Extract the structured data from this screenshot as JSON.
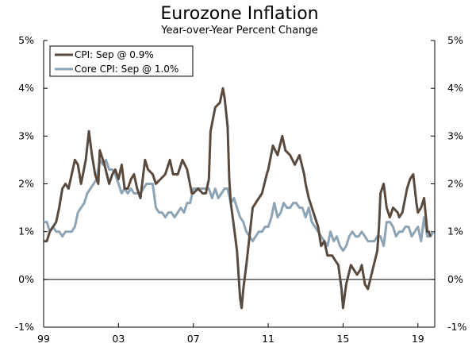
{
  "chart_data": {
    "type": "line",
    "title": "Eurozone Inflation",
    "subtitle": "Year-over-Year Percent Change",
    "xlabel": "",
    "ylabel": "",
    "ylim": [
      -1,
      5
    ],
    "xlim": [
      1999.0,
      2019.9
    ],
    "y_ticks": [
      {
        "value": 5,
        "label": "5%"
      },
      {
        "value": 4,
        "label": "4%"
      },
      {
        "value": 3,
        "label": "3%"
      },
      {
        "value": 2,
        "label": "2%"
      },
      {
        "value": 1,
        "label": "1%"
      },
      {
        "value": 0,
        "label": "0%"
      },
      {
        "value": -1,
        "label": "-1%"
      }
    ],
    "x_ticks": [
      {
        "value": 1999,
        "label": "99"
      },
      {
        "value": 2003,
        "label": "03"
      },
      {
        "value": 2007,
        "label": "07"
      },
      {
        "value": 2011,
        "label": "11"
      },
      {
        "value": 2015,
        "label": "15"
      },
      {
        "value": 2019,
        "label": "19"
      }
    ],
    "legend_position": "top-left",
    "series": [
      {
        "name": "CPI: Sep @ 0.9%",
        "color": "#5a4a3e",
        "points": [
          [
            1999.0,
            0.8
          ],
          [
            1999.17,
            0.8
          ],
          [
            1999.33,
            1.0
          ],
          [
            1999.5,
            1.1
          ],
          [
            1999.67,
            1.2
          ],
          [
            1999.83,
            1.5
          ],
          [
            2000.0,
            1.9
          ],
          [
            2000.17,
            2.0
          ],
          [
            2000.33,
            1.9
          ],
          [
            2000.5,
            2.2
          ],
          [
            2000.67,
            2.5
          ],
          [
            2000.83,
            2.4
          ],
          [
            2001.0,
            2.0
          ],
          [
            2001.25,
            2.5
          ],
          [
            2001.42,
            3.1
          ],
          [
            2001.58,
            2.6
          ],
          [
            2001.75,
            2.2
          ],
          [
            2001.92,
            2.0
          ],
          [
            2002.0,
            2.7
          ],
          [
            2002.25,
            2.4
          ],
          [
            2002.5,
            2.0
          ],
          [
            2002.67,
            2.2
          ],
          [
            2002.83,
            2.3
          ],
          [
            2003.0,
            2.1
          ],
          [
            2003.17,
            2.4
          ],
          [
            2003.33,
            1.9
          ],
          [
            2003.5,
            1.9
          ],
          [
            2003.67,
            2.1
          ],
          [
            2003.83,
            2.2
          ],
          [
            2004.0,
            1.9
          ],
          [
            2004.17,
            1.7
          ],
          [
            2004.42,
            2.5
          ],
          [
            2004.58,
            2.3
          ],
          [
            2004.83,
            2.2
          ],
          [
            2005.0,
            2.0
          ],
          [
            2005.25,
            2.1
          ],
          [
            2005.5,
            2.2
          ],
          [
            2005.75,
            2.5
          ],
          [
            2005.92,
            2.2
          ],
          [
            2006.17,
            2.2
          ],
          [
            2006.42,
            2.5
          ],
          [
            2006.67,
            2.3
          ],
          [
            2006.92,
            1.8
          ],
          [
            2007.0,
            1.8
          ],
          [
            2007.25,
            1.9
          ],
          [
            2007.5,
            1.8
          ],
          [
            2007.67,
            1.8
          ],
          [
            2007.83,
            2.1
          ],
          [
            2007.92,
            3.1
          ],
          [
            2008.17,
            3.6
          ],
          [
            2008.42,
            3.7
          ],
          [
            2008.58,
            4.0
          ],
          [
            2008.67,
            3.8
          ],
          [
            2008.83,
            3.2
          ],
          [
            2008.92,
            2.1
          ],
          [
            2009.0,
            1.6
          ],
          [
            2009.17,
            1.1
          ],
          [
            2009.33,
            0.6
          ],
          [
            2009.5,
            -0.4
          ],
          [
            2009.58,
            -0.6
          ],
          [
            2009.67,
            -0.2
          ],
          [
            2009.83,
            0.3
          ],
          [
            2010.0,
            0.9
          ],
          [
            2010.17,
            1.5
          ],
          [
            2010.33,
            1.6
          ],
          [
            2010.5,
            1.7
          ],
          [
            2010.67,
            1.8
          ],
          [
            2010.92,
            2.2
          ],
          [
            2011.0,
            2.3
          ],
          [
            2011.25,
            2.8
          ],
          [
            2011.5,
            2.6
          ],
          [
            2011.75,
            3.0
          ],
          [
            2011.92,
            2.7
          ],
          [
            2012.17,
            2.6
          ],
          [
            2012.42,
            2.4
          ],
          [
            2012.67,
            2.6
          ],
          [
            2012.92,
            2.2
          ],
          [
            2013.0,
            2.0
          ],
          [
            2013.17,
            1.7
          ],
          [
            2013.42,
            1.4
          ],
          [
            2013.67,
            1.1
          ],
          [
            2013.83,
            0.7
          ],
          [
            2014.0,
            0.8
          ],
          [
            2014.17,
            0.5
          ],
          [
            2014.42,
            0.5
          ],
          [
            2014.58,
            0.4
          ],
          [
            2014.75,
            0.3
          ],
          [
            2014.92,
            -0.2
          ],
          [
            2015.0,
            -0.6
          ],
          [
            2015.17,
            -0.1
          ],
          [
            2015.42,
            0.3
          ],
          [
            2015.58,
            0.2
          ],
          [
            2015.75,
            0.1
          ],
          [
            2015.92,
            0.2
          ],
          [
            2016.0,
            0.3
          ],
          [
            2016.17,
            -0.1
          ],
          [
            2016.33,
            -0.2
          ],
          [
            2016.58,
            0.2
          ],
          [
            2016.83,
            0.6
          ],
          [
            2016.92,
            1.1
          ],
          [
            2017.0,
            1.8
          ],
          [
            2017.17,
            2.0
          ],
          [
            2017.33,
            1.5
          ],
          [
            2017.5,
            1.3
          ],
          [
            2017.67,
            1.5
          ],
          [
            2017.92,
            1.4
          ],
          [
            2018.0,
            1.3
          ],
          [
            2018.17,
            1.4
          ],
          [
            2018.42,
            1.9
          ],
          [
            2018.58,
            2.1
          ],
          [
            2018.75,
            2.2
          ],
          [
            2018.92,
            1.6
          ],
          [
            2019.0,
            1.4
          ],
          [
            2019.17,
            1.5
          ],
          [
            2019.33,
            1.7
          ],
          [
            2019.5,
            1.0
          ],
          [
            2019.58,
            1.0
          ],
          [
            2019.67,
            0.9
          ]
        ]
      },
      {
        "name": "Core CPI: Sep @ 1.0%",
        "color": "#8da4b5",
        "points": [
          [
            1999.0,
            1.2
          ],
          [
            1999.17,
            1.2
          ],
          [
            1999.33,
            1.0
          ],
          [
            1999.5,
            1.1
          ],
          [
            1999.67,
            1.0
          ],
          [
            1999.83,
            1.0
          ],
          [
            2000.0,
            0.9
          ],
          [
            2000.17,
            1.0
          ],
          [
            2000.33,
            1.0
          ],
          [
            2000.5,
            1.0
          ],
          [
            2000.67,
            1.1
          ],
          [
            2000.83,
            1.4
          ],
          [
            2001.0,
            1.5
          ],
          [
            2001.17,
            1.6
          ],
          [
            2001.33,
            1.8
          ],
          [
            2001.5,
            1.9
          ],
          [
            2001.67,
            2.0
          ],
          [
            2001.83,
            2.1
          ],
          [
            2002.0,
            2.5
          ],
          [
            2002.17,
            2.4
          ],
          [
            2002.33,
            2.5
          ],
          [
            2002.5,
            2.3
          ],
          [
            2002.67,
            2.3
          ],
          [
            2002.83,
            2.2
          ],
          [
            2003.0,
            2.0
          ],
          [
            2003.17,
            1.8
          ],
          [
            2003.33,
            1.9
          ],
          [
            2003.5,
            1.8
          ],
          [
            2003.67,
            1.9
          ],
          [
            2003.83,
            1.8
          ],
          [
            2004.0,
            1.8
          ],
          [
            2004.17,
            1.8
          ],
          [
            2004.33,
            1.9
          ],
          [
            2004.5,
            2.0
          ],
          [
            2004.67,
            2.0
          ],
          [
            2004.83,
            2.0
          ],
          [
            2005.0,
            1.5
          ],
          [
            2005.17,
            1.4
          ],
          [
            2005.33,
            1.4
          ],
          [
            2005.5,
            1.3
          ],
          [
            2005.67,
            1.4
          ],
          [
            2005.83,
            1.4
          ],
          [
            2006.0,
            1.3
          ],
          [
            2006.17,
            1.4
          ],
          [
            2006.33,
            1.5
          ],
          [
            2006.5,
            1.4
          ],
          [
            2006.67,
            1.6
          ],
          [
            2006.83,
            1.6
          ],
          [
            2007.0,
            1.9
          ],
          [
            2007.17,
            1.9
          ],
          [
            2007.33,
            1.9
          ],
          [
            2007.5,
            1.9
          ],
          [
            2007.67,
            1.9
          ],
          [
            2007.83,
            1.9
          ],
          [
            2008.0,
            1.7
          ],
          [
            2008.17,
            1.9
          ],
          [
            2008.33,
            1.7
          ],
          [
            2008.5,
            1.8
          ],
          [
            2008.67,
            1.9
          ],
          [
            2008.83,
            1.9
          ],
          [
            2009.0,
            1.6
          ],
          [
            2009.17,
            1.7
          ],
          [
            2009.33,
            1.5
          ],
          [
            2009.5,
            1.3
          ],
          [
            2009.67,
            1.2
          ],
          [
            2009.83,
            1.0
          ],
          [
            2010.0,
            0.9
          ],
          [
            2010.17,
            0.8
          ],
          [
            2010.33,
            0.9
          ],
          [
            2010.5,
            1.0
          ],
          [
            2010.67,
            1.0
          ],
          [
            2010.83,
            1.1
          ],
          [
            2011.0,
            1.1
          ],
          [
            2011.17,
            1.3
          ],
          [
            2011.33,
            1.6
          ],
          [
            2011.5,
            1.3
          ],
          [
            2011.67,
            1.4
          ],
          [
            2011.83,
            1.6
          ],
          [
            2012.0,
            1.5
          ],
          [
            2012.17,
            1.5
          ],
          [
            2012.33,
            1.6
          ],
          [
            2012.5,
            1.6
          ],
          [
            2012.67,
            1.5
          ],
          [
            2012.83,
            1.5
          ],
          [
            2013.0,
            1.3
          ],
          [
            2013.17,
            1.5
          ],
          [
            2013.33,
            1.2
          ],
          [
            2013.5,
            1.1
          ],
          [
            2013.67,
            1.0
          ],
          [
            2013.83,
            0.9
          ],
          [
            2014.0,
            0.8
          ],
          [
            2014.17,
            0.7
          ],
          [
            2014.33,
            1.0
          ],
          [
            2014.5,
            0.8
          ],
          [
            2014.67,
            0.9
          ],
          [
            2014.83,
            0.7
          ],
          [
            2015.0,
            0.6
          ],
          [
            2015.17,
            0.7
          ],
          [
            2015.33,
            0.9
          ],
          [
            2015.5,
            1.0
          ],
          [
            2015.67,
            0.9
          ],
          [
            2015.83,
            0.9
          ],
          [
            2016.0,
            1.0
          ],
          [
            2016.17,
            0.9
          ],
          [
            2016.33,
            0.8
          ],
          [
            2016.5,
            0.8
          ],
          [
            2016.67,
            0.8
          ],
          [
            2016.83,
            0.9
          ],
          [
            2017.0,
            0.9
          ],
          [
            2017.17,
            0.7
          ],
          [
            2017.33,
            1.2
          ],
          [
            2017.5,
            1.2
          ],
          [
            2017.67,
            1.1
          ],
          [
            2017.83,
            0.9
          ],
          [
            2018.0,
            1.0
          ],
          [
            2018.17,
            1.0
          ],
          [
            2018.33,
            1.1
          ],
          [
            2018.5,
            1.1
          ],
          [
            2018.67,
            0.9
          ],
          [
            2018.83,
            1.0
          ],
          [
            2019.0,
            1.1
          ],
          [
            2019.17,
            0.8
          ],
          [
            2019.33,
            1.3
          ],
          [
            2019.5,
            0.9
          ],
          [
            2019.67,
            0.9
          ],
          [
            2019.83,
            1.0
          ]
        ]
      }
    ]
  }
}
